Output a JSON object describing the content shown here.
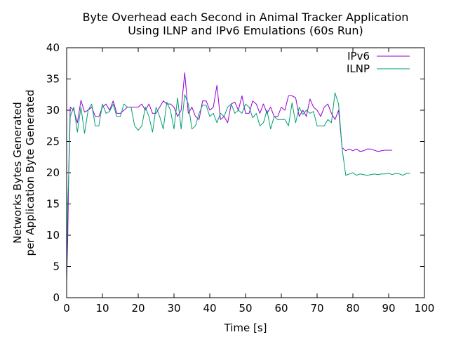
{
  "chart_data": {
    "type": "line",
    "title_line1": "Byte Overhead each Second in Animal Tracker Application",
    "title_line2": "Using ILNP and IPv6 Emulations (60s Run)",
    "xlabel": "Time [s]",
    "ylabel_line1": "Networks Bytes Generated",
    "ylabel_line2": "per Application Byte Generated",
    "xlim": [
      0,
      100
    ],
    "ylim": [
      0,
      40
    ],
    "xticks": [
      0,
      10,
      20,
      30,
      40,
      50,
      60,
      70,
      80,
      90,
      100
    ],
    "yticks": [
      0,
      5,
      10,
      15,
      20,
      25,
      30,
      35,
      40
    ],
    "legend_position": "top-right",
    "series": [
      {
        "name": "IPv6",
        "color": "#9400d3",
        "x": [
          0,
          0.3,
          0.6,
          1,
          2,
          3,
          4,
          5,
          6,
          7,
          8,
          9,
          10,
          11,
          12,
          13,
          14,
          15,
          16,
          17,
          18,
          19,
          20,
          21,
          22,
          23,
          24,
          25,
          26,
          27,
          28,
          29,
          30,
          31,
          32,
          33,
          34,
          35,
          36,
          37,
          38,
          39,
          40,
          41,
          42,
          43,
          44,
          45,
          46,
          47,
          48,
          49,
          50,
          51,
          52,
          53,
          54,
          55,
          56,
          57,
          58,
          59,
          60,
          61,
          62,
          63,
          64,
          65,
          66,
          67,
          68,
          69,
          70,
          71,
          72,
          73,
          74,
          75,
          76,
          77,
          78,
          79,
          80,
          81,
          82,
          83,
          84,
          85,
          86,
          87,
          88,
          89,
          90,
          91
        ],
        "values": [
          2.8,
          9,
          21,
          30.5,
          30,
          28,
          31.6,
          29.7,
          30,
          30.5,
          29,
          29,
          30.5,
          31,
          30,
          31.5,
          29.5,
          29.5,
          30,
          30.5,
          30.5,
          30.5,
          30.5,
          31,
          30,
          31,
          29.5,
          29.5,
          30.5,
          31.5,
          31,
          31,
          30.5,
          29,
          30,
          36,
          29.5,
          30.5,
          29,
          28.5,
          31.5,
          31.5,
          30,
          30.5,
          34,
          28.5,
          29,
          28,
          31,
          31.3,
          30,
          32.3,
          29.5,
          29.5,
          31.5,
          31,
          29.5,
          31,
          29.5,
          30.5,
          29,
          29,
          30.5,
          30,
          32.3,
          32.3,
          32,
          29,
          30,
          29,
          31.8,
          30.5,
          30,
          29,
          30.5,
          31,
          29.5,
          28.5,
          30,
          24,
          23.5,
          23.8,
          23.5,
          23.8,
          23.4,
          23.5,
          23.8,
          23.8,
          23.6,
          23.4,
          23.5,
          23.6,
          23.6,
          23.6
        ]
      },
      {
        "name": "ILNP",
        "color": "#009e73",
        "x": [
          0,
          0.3,
          0.6,
          1,
          2,
          3,
          4,
          5,
          6,
          7,
          8,
          9,
          10,
          11,
          12,
          13,
          14,
          15,
          16,
          17,
          18,
          19,
          20,
          21,
          22,
          23,
          24,
          25,
          26,
          27,
          28,
          29,
          30,
          31,
          32,
          33,
          34,
          35,
          36,
          37,
          38,
          39,
          40,
          41,
          42,
          43,
          44,
          45,
          46,
          47,
          48,
          49,
          50,
          51,
          52,
          53,
          54,
          55,
          56,
          57,
          58,
          59,
          60,
          61,
          62,
          63,
          64,
          65,
          66,
          67,
          68,
          69,
          70,
          71,
          72,
          73,
          74,
          75,
          76,
          77,
          78,
          79,
          80,
          81,
          82,
          83,
          84,
          85,
          86,
          87,
          88,
          89,
          90,
          91,
          92,
          93,
          94,
          95,
          96
        ],
        "values": [
          2.5,
          15,
          20,
          29,
          30.5,
          26.5,
          30.5,
          26.3,
          30,
          31,
          27.5,
          27.5,
          31,
          29.5,
          29.8,
          31,
          29,
          29,
          31,
          30.5,
          30.5,
          27.5,
          26.8,
          27.5,
          30.5,
          29,
          26.5,
          30.5,
          29,
          27,
          31.3,
          30,
          27,
          32,
          27,
          32.5,
          31,
          27,
          27.5,
          29.5,
          30.8,
          30.8,
          29,
          29.5,
          28,
          29.5,
          29,
          30.5,
          31,
          29.5,
          30,
          29.5,
          31,
          30.5,
          28.8,
          29.5,
          27.5,
          28,
          30,
          27,
          29,
          28.5,
          28.5,
          28.5,
          27.5,
          31.2,
          28,
          30.5,
          29.3,
          30,
          29.5,
          29.8,
          27.5,
          27.5,
          27.5,
          28.5,
          28,
          32.8,
          31,
          23.8,
          19.6,
          19.8,
          20,
          19.6,
          19.8,
          19.7,
          19.6,
          19.7,
          19.8,
          19.7,
          19.8,
          19.8,
          19.9,
          19.7,
          19.9,
          19.8,
          19.6,
          19.9,
          19.9
        ]
      }
    ]
  }
}
